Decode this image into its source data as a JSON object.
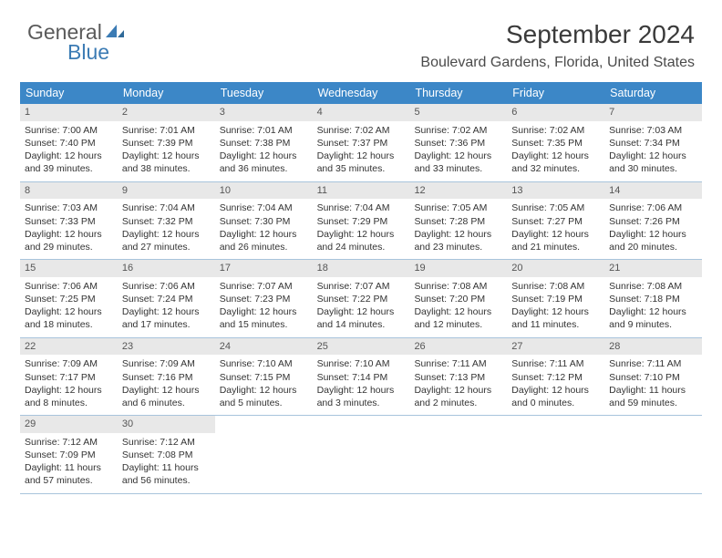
{
  "logo": {
    "part1": "General",
    "part2": "Blue"
  },
  "header": {
    "title": "September 2024",
    "location": "Boulevard Gardens, Florida, United States"
  },
  "colors": {
    "dow_bg": "#3c87c7",
    "daynum_bg": "#e8e8e8",
    "week_border": "#a8c4dc",
    "logo_blue": "#3b7bb4"
  },
  "daysOfWeek": [
    "Sunday",
    "Monday",
    "Tuesday",
    "Wednesday",
    "Thursday",
    "Friday",
    "Saturday"
  ],
  "days": [
    {
      "n": "1",
      "sr": "Sunrise: 7:00 AM",
      "ss": "Sunset: 7:40 PM",
      "d1": "Daylight: 12 hours",
      "d2": "and 39 minutes."
    },
    {
      "n": "2",
      "sr": "Sunrise: 7:01 AM",
      "ss": "Sunset: 7:39 PM",
      "d1": "Daylight: 12 hours",
      "d2": "and 38 minutes."
    },
    {
      "n": "3",
      "sr": "Sunrise: 7:01 AM",
      "ss": "Sunset: 7:38 PM",
      "d1": "Daylight: 12 hours",
      "d2": "and 36 minutes."
    },
    {
      "n": "4",
      "sr": "Sunrise: 7:02 AM",
      "ss": "Sunset: 7:37 PM",
      "d1": "Daylight: 12 hours",
      "d2": "and 35 minutes."
    },
    {
      "n": "5",
      "sr": "Sunrise: 7:02 AM",
      "ss": "Sunset: 7:36 PM",
      "d1": "Daylight: 12 hours",
      "d2": "and 33 minutes."
    },
    {
      "n": "6",
      "sr": "Sunrise: 7:02 AM",
      "ss": "Sunset: 7:35 PM",
      "d1": "Daylight: 12 hours",
      "d2": "and 32 minutes."
    },
    {
      "n": "7",
      "sr": "Sunrise: 7:03 AM",
      "ss": "Sunset: 7:34 PM",
      "d1": "Daylight: 12 hours",
      "d2": "and 30 minutes."
    },
    {
      "n": "8",
      "sr": "Sunrise: 7:03 AM",
      "ss": "Sunset: 7:33 PM",
      "d1": "Daylight: 12 hours",
      "d2": "and 29 minutes."
    },
    {
      "n": "9",
      "sr": "Sunrise: 7:04 AM",
      "ss": "Sunset: 7:32 PM",
      "d1": "Daylight: 12 hours",
      "d2": "and 27 minutes."
    },
    {
      "n": "10",
      "sr": "Sunrise: 7:04 AM",
      "ss": "Sunset: 7:30 PM",
      "d1": "Daylight: 12 hours",
      "d2": "and 26 minutes."
    },
    {
      "n": "11",
      "sr": "Sunrise: 7:04 AM",
      "ss": "Sunset: 7:29 PM",
      "d1": "Daylight: 12 hours",
      "d2": "and 24 minutes."
    },
    {
      "n": "12",
      "sr": "Sunrise: 7:05 AM",
      "ss": "Sunset: 7:28 PM",
      "d1": "Daylight: 12 hours",
      "d2": "and 23 minutes."
    },
    {
      "n": "13",
      "sr": "Sunrise: 7:05 AM",
      "ss": "Sunset: 7:27 PM",
      "d1": "Daylight: 12 hours",
      "d2": "and 21 minutes."
    },
    {
      "n": "14",
      "sr": "Sunrise: 7:06 AM",
      "ss": "Sunset: 7:26 PM",
      "d1": "Daylight: 12 hours",
      "d2": "and 20 minutes."
    },
    {
      "n": "15",
      "sr": "Sunrise: 7:06 AM",
      "ss": "Sunset: 7:25 PM",
      "d1": "Daylight: 12 hours",
      "d2": "and 18 minutes."
    },
    {
      "n": "16",
      "sr": "Sunrise: 7:06 AM",
      "ss": "Sunset: 7:24 PM",
      "d1": "Daylight: 12 hours",
      "d2": "and 17 minutes."
    },
    {
      "n": "17",
      "sr": "Sunrise: 7:07 AM",
      "ss": "Sunset: 7:23 PM",
      "d1": "Daylight: 12 hours",
      "d2": "and 15 minutes."
    },
    {
      "n": "18",
      "sr": "Sunrise: 7:07 AM",
      "ss": "Sunset: 7:22 PM",
      "d1": "Daylight: 12 hours",
      "d2": "and 14 minutes."
    },
    {
      "n": "19",
      "sr": "Sunrise: 7:08 AM",
      "ss": "Sunset: 7:20 PM",
      "d1": "Daylight: 12 hours",
      "d2": "and 12 minutes."
    },
    {
      "n": "20",
      "sr": "Sunrise: 7:08 AM",
      "ss": "Sunset: 7:19 PM",
      "d1": "Daylight: 12 hours",
      "d2": "and 11 minutes."
    },
    {
      "n": "21",
      "sr": "Sunrise: 7:08 AM",
      "ss": "Sunset: 7:18 PM",
      "d1": "Daylight: 12 hours",
      "d2": "and 9 minutes."
    },
    {
      "n": "22",
      "sr": "Sunrise: 7:09 AM",
      "ss": "Sunset: 7:17 PM",
      "d1": "Daylight: 12 hours",
      "d2": "and 8 minutes."
    },
    {
      "n": "23",
      "sr": "Sunrise: 7:09 AM",
      "ss": "Sunset: 7:16 PM",
      "d1": "Daylight: 12 hours",
      "d2": "and 6 minutes."
    },
    {
      "n": "24",
      "sr": "Sunrise: 7:10 AM",
      "ss": "Sunset: 7:15 PM",
      "d1": "Daylight: 12 hours",
      "d2": "and 5 minutes."
    },
    {
      "n": "25",
      "sr": "Sunrise: 7:10 AM",
      "ss": "Sunset: 7:14 PM",
      "d1": "Daylight: 12 hours",
      "d2": "and 3 minutes."
    },
    {
      "n": "26",
      "sr": "Sunrise: 7:11 AM",
      "ss": "Sunset: 7:13 PM",
      "d1": "Daylight: 12 hours",
      "d2": "and 2 minutes."
    },
    {
      "n": "27",
      "sr": "Sunrise: 7:11 AM",
      "ss": "Sunset: 7:12 PM",
      "d1": "Daylight: 12 hours",
      "d2": "and 0 minutes."
    },
    {
      "n": "28",
      "sr": "Sunrise: 7:11 AM",
      "ss": "Sunset: 7:10 PM",
      "d1": "Daylight: 11 hours",
      "d2": "and 59 minutes."
    },
    {
      "n": "29",
      "sr": "Sunrise: 7:12 AM",
      "ss": "Sunset: 7:09 PM",
      "d1": "Daylight: 11 hours",
      "d2": "and 57 minutes."
    },
    {
      "n": "30",
      "sr": "Sunrise: 7:12 AM",
      "ss": "Sunset: 7:08 PM",
      "d1": "Daylight: 11 hours",
      "d2": "and 56 minutes."
    }
  ]
}
